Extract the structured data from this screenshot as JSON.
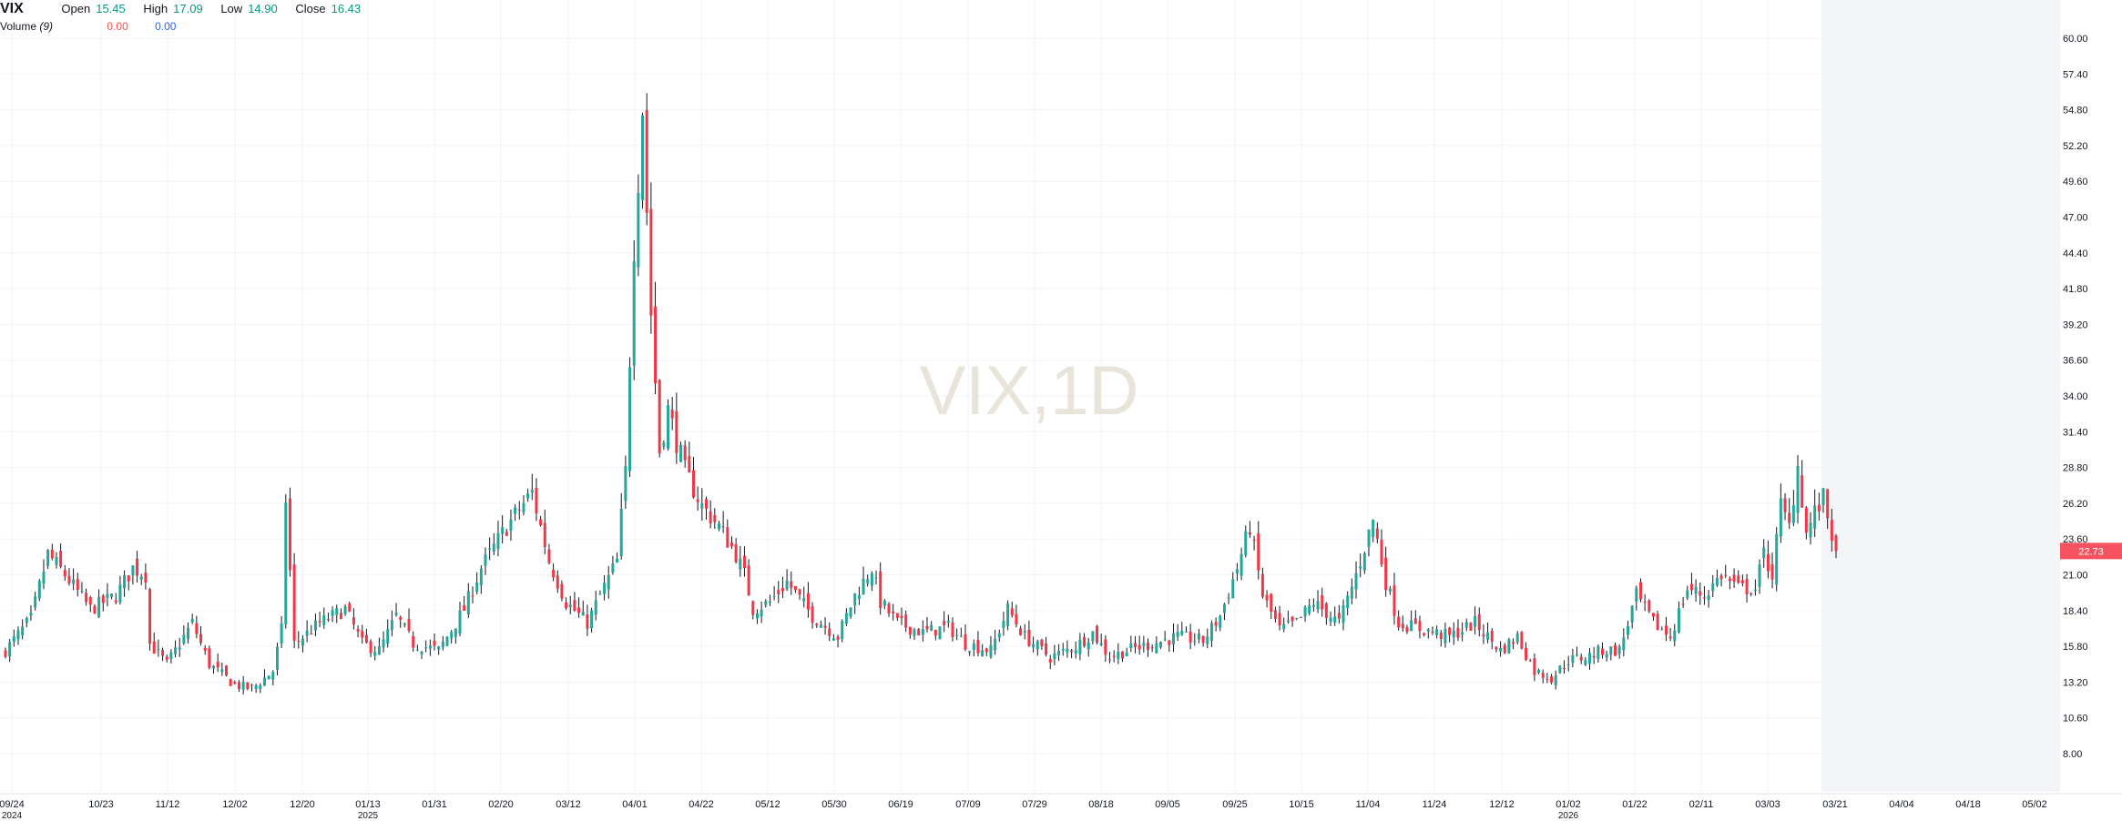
{
  "legend": {
    "symbol": "VIX",
    "open_label": "Open",
    "open": "15.45",
    "high_label": "High",
    "high": "17.09",
    "low_label": "Low",
    "low": "14.90",
    "close_label": "Close",
    "close": "16.43",
    "volume_label": "Volume",
    "volume_param": "(9)",
    "volume_value1": "0.00",
    "volume_value2": "0.00"
  },
  "watermark": "VIX,1D",
  "colors": {
    "up": "#26a69a",
    "down": "#f23645",
    "wick": "#131722",
    "grid": "#f0f3fa",
    "price_tag": "#f7525f"
  },
  "chart_data": {
    "type": "candlestick",
    "title": "VIX",
    "interval": "1D",
    "last_price": "22.73",
    "ylim": [
      5.4,
      62.6
    ],
    "y_ticks": [
      "60.00",
      "57.40",
      "54.80",
      "52.20",
      "49.60",
      "47.00",
      "44.40",
      "41.80",
      "39.20",
      "36.60",
      "34.00",
      "31.40",
      "28.80",
      "26.20",
      "23.60",
      "21.00",
      "18.40",
      "15.80",
      "13.20",
      "10.60",
      "8.00"
    ],
    "x_ticks": [
      {
        "label": "09/24",
        "year": "2024"
      },
      {
        "label": "10/23",
        "year": ""
      },
      {
        "label": "11/12",
        "year": ""
      },
      {
        "label": "12/02",
        "year": ""
      },
      {
        "label": "12/20",
        "year": ""
      },
      {
        "label": "01/13",
        "year": "2025"
      },
      {
        "label": "01/31",
        "year": ""
      },
      {
        "label": "02/20",
        "year": ""
      },
      {
        "label": "03/12",
        "year": ""
      },
      {
        "label": "04/01",
        "year": ""
      },
      {
        "label": "04/22",
        "year": ""
      },
      {
        "label": "05/12",
        "year": ""
      },
      {
        "label": "05/30",
        "year": ""
      },
      {
        "label": "06/19",
        "year": ""
      },
      {
        "label": "07/09",
        "year": ""
      },
      {
        "label": "07/29",
        "year": ""
      },
      {
        "label": "08/18",
        "year": ""
      },
      {
        "label": "09/05",
        "year": ""
      },
      {
        "label": "09/25",
        "year": ""
      },
      {
        "label": "10/15",
        "year": ""
      },
      {
        "label": "11/04",
        "year": ""
      },
      {
        "label": "11/24",
        "year": ""
      },
      {
        "label": "12/12",
        "year": ""
      },
      {
        "label": "01/02",
        "year": "2026"
      },
      {
        "label": "01/22",
        "year": ""
      },
      {
        "label": "02/11",
        "year": ""
      },
      {
        "label": "03/03",
        "year": ""
      },
      {
        "label": "03/21",
        "year": ""
      },
      {
        "label": "04/04",
        "year": ""
      },
      {
        "label": "04/18",
        "year": ""
      },
      {
        "label": "05/02",
        "year": ""
      }
    ],
    "close_path": [
      [
        0,
        15.5
      ],
      [
        6,
        17.8
      ],
      [
        10,
        22.5
      ],
      [
        14,
        21.0
      ],
      [
        20,
        18.5
      ],
      [
        26,
        19.5
      ],
      [
        30,
        21.5
      ],
      [
        33,
        21.0
      ],
      [
        34,
        16.0
      ],
      [
        38,
        14.5
      ],
      [
        44,
        17.5
      ],
      [
        48,
        14.5
      ],
      [
        54,
        13.0
      ],
      [
        58,
        12.7
      ],
      [
        63,
        14.0
      ],
      [
        65,
        17.0
      ],
      [
        66,
        26.5
      ],
      [
        68,
        16.0
      ],
      [
        74,
        17.5
      ],
      [
        80,
        18.5
      ],
      [
        84,
        16.0
      ],
      [
        88,
        15.5
      ],
      [
        92,
        18.0
      ],
      [
        96,
        16.0
      ],
      [
        102,
        15.5
      ],
      [
        108,
        18.5
      ],
      [
        112,
        21.5
      ],
      [
        118,
        24.5
      ],
      [
        124,
        27.0
      ],
      [
        128,
        22.0
      ],
      [
        132,
        19.0
      ],
      [
        137,
        17.5
      ],
      [
        140,
        19.5
      ],
      [
        144,
        22.0
      ],
      [
        146,
        28.5
      ],
      [
        148,
        45.0
      ],
      [
        150,
        55.0
      ],
      [
        152,
        40.0
      ],
      [
        154,
        30.0
      ],
      [
        156,
        33.0
      ],
      [
        160,
        28.5
      ],
      [
        164,
        26.0
      ],
      [
        168,
        24.5
      ],
      [
        172,
        22.5
      ],
      [
        174,
        21.0
      ],
      [
        176,
        18.5
      ],
      [
        180,
        19.0
      ],
      [
        184,
        20.5
      ],
      [
        190,
        18.0
      ],
      [
        196,
        16.5
      ],
      [
        200,
        19.5
      ],
      [
        204,
        21.5
      ],
      [
        206,
        19.0
      ],
      [
        210,
        17.5
      ],
      [
        216,
        16.8
      ],
      [
        222,
        17.2
      ],
      [
        226,
        16.0
      ],
      [
        232,
        15.5
      ],
      [
        236,
        18.5
      ],
      [
        240,
        16.5
      ],
      [
        246,
        15.0
      ],
      [
        252,
        15.8
      ],
      [
        256,
        16.8
      ],
      [
        260,
        15.0
      ],
      [
        264,
        15.5
      ],
      [
        270,
        16.0
      ],
      [
        276,
        16.5
      ],
      [
        282,
        16.2
      ],
      [
        286,
        18.0
      ],
      [
        290,
        21.5
      ],
      [
        293,
        24.5
      ],
      [
        296,
        19.5
      ],
      [
        300,
        17.0
      ],
      [
        304,
        17.5
      ],
      [
        308,
        19.0
      ],
      [
        314,
        17.5
      ],
      [
        318,
        21.0
      ],
      [
        322,
        25.0
      ],
      [
        325,
        20.5
      ],
      [
        328,
        17.5
      ],
      [
        334,
        17.0
      ],
      [
        340,
        16.5
      ],
      [
        346,
        17.5
      ],
      [
        352,
        15.5
      ],
      [
        356,
        16.5
      ],
      [
        360,
        14.0
      ],
      [
        364,
        13.5
      ],
      [
        368,
        14.8
      ],
      [
        372,
        15.0
      ],
      [
        376,
        15.5
      ],
      [
        380,
        15.5
      ],
      [
        384,
        19.5
      ],
      [
        388,
        17.5
      ],
      [
        392,
        16.5
      ],
      [
        396,
        20.0
      ],
      [
        400,
        19.5
      ],
      [
        404,
        21.0
      ],
      [
        408,
        20.0
      ],
      [
        412,
        20.0
      ],
      [
        414,
        22.5
      ],
      [
        416,
        21.0
      ],
      [
        418,
        26.0
      ],
      [
        420,
        24.5
      ],
      [
        422,
        29.0
      ],
      [
        424,
        24.0
      ],
      [
        426,
        25.5
      ],
      [
        428,
        26.5
      ],
      [
        430,
        24.0
      ],
      [
        431,
        22.73
      ]
    ]
  }
}
